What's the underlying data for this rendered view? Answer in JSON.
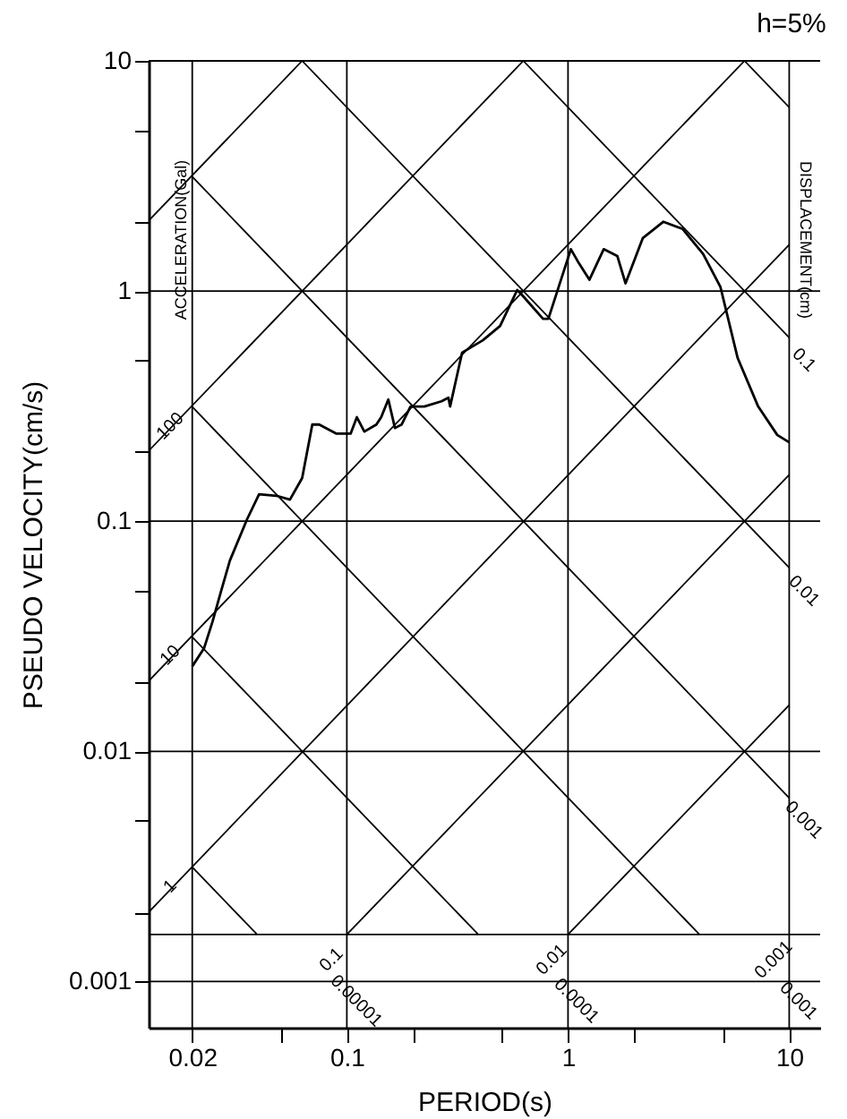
{
  "chart_data": {
    "type": "line",
    "title": "h=5%",
    "xlabel": "PERIOD(s)",
    "ylabel": "PSEUDO VELOCITY(cm/s)",
    "log": "xy",
    "grid": true,
    "xlim": [
      0.0127,
      13.8
    ],
    "ylim": [
      0.00063,
      10
    ],
    "xticks": [
      0.02,
      {
        "value": 0.05,
        "label": null
      },
      0.1,
      {
        "value": 0.2,
        "label": null
      },
      {
        "value": 0.5,
        "label": null
      },
      1,
      {
        "value": 2,
        "label": null
      },
      {
        "value": 5,
        "label": null
      },
      10
    ],
    "yticks": [
      0.001,
      {
        "value": 0.002,
        "label": null
      },
      {
        "value": 0.005,
        "label": null
      },
      0.01,
      {
        "value": 0.02,
        "label": null
      },
      {
        "value": 0.05,
        "label": null
      },
      0.1,
      {
        "value": 0.2,
        "label": null
      },
      {
        "value": 0.5,
        "label": null
      },
      1,
      {
        "value": 2,
        "label": null
      },
      {
        "value": 5,
        "label": null
      },
      10
    ],
    "series": [
      {
        "color": "#000000",
        "x": [
          0.02,
          0.0226,
          0.0247,
          0.027,
          0.0296,
          0.0354,
          0.0401,
          0.048,
          0.0553,
          0.0628,
          0.0698,
          0.075,
          0.0898,
          0.104,
          0.111,
          0.12,
          0.136,
          0.143,
          0.154,
          0.165,
          0.177,
          0.194,
          0.224,
          0.268,
          0.288,
          0.293,
          0.332,
          0.412,
          0.493,
          0.589,
          0.622,
          0.771,
          0.815,
          1.03,
          1.12,
          1.25,
          1.45,
          1.67,
          1.82,
          2.18,
          2.7,
          3.3,
          4.08,
          4.89,
          5.85,
          7.24,
          8.83,
          10
        ],
        "values": [
          0.0234,
          0.028,
          0.0366,
          0.0497,
          0.0675,
          0.102,
          0.131,
          0.129,
          0.124,
          0.154,
          0.263,
          0.263,
          0.24,
          0.24,
          0.283,
          0.245,
          0.263,
          0.283,
          0.338,
          0.254,
          0.263,
          0.315,
          0.315,
          0.332,
          0.344,
          0.315,
          0.54,
          0.611,
          0.705,
          1.01,
          0.957,
          0.757,
          0.757,
          1.52,
          1.32,
          1.12,
          1.52,
          1.42,
          1.08,
          1.7,
          2.0,
          1.86,
          1.45,
          1.04,
          0.511,
          0.315,
          0.237,
          0.22
        ]
      },
      {
        "color": "#000000",
        "x": [
          0.0127,
          0.0628
        ],
        "values": [
          2.02,
          10
        ]
      },
      {
        "color": "#000000",
        "x": [
          0.0127,
          0.628
        ],
        "values": [
          0.202,
          10
        ]
      },
      {
        "color": "#000000",
        "x": [
          0.0127,
          6.28
        ],
        "values": [
          0.0202,
          10
        ]
      },
      {
        "color": "#000000",
        "x": [
          0.0127,
          10
        ],
        "values": [
          0.002,
          1.59
        ]
      },
      {
        "color": "#000000",
        "x": [
          0.1,
          10
        ],
        "values": [
          0.0016,
          0.159
        ]
      },
      {
        "color": "#000000",
        "x": [
          1,
          10
        ],
        "values": [
          0.0016,
          0.0159
        ]
      },
      {
        "color": "#000000",
        "x": [
          6.28,
          10
        ],
        "values": [
          10,
          6.28
        ]
      },
      {
        "color": "#000000",
        "x": [
          0.628,
          10
        ],
        "values": [
          10,
          0.628
        ]
      },
      {
        "color": "#000000",
        "x": [
          0.0628,
          10
        ],
        "values": [
          10,
          0.0628
        ]
      },
      {
        "color": "#000000",
        "x": [
          0.02,
          10
        ],
        "values": [
          3.14,
          0.00628
        ]
      },
      {
        "color": "#000000",
        "x": [
          0.02,
          3.93
        ],
        "values": [
          0.314,
          0.0016
        ]
      },
      {
        "color": "#000000",
        "x": [
          0.02,
          0.393
        ],
        "values": [
          0.0314,
          0.0016
        ]
      },
      {
        "color": "#000000",
        "x": [
          0.02,
          0.0393
        ],
        "values": [
          0.00314,
          0.0016
        ]
      }
    ],
    "ref_lines": [
      {
        "axis": "y",
        "value": 0.0016,
        "color": "#000000"
      }
    ],
    "annotations": [
      "ACCELERATION(Gal)",
      "DISPLACEMENT(cm)",
      "100",
      "10",
      "1",
      "0.1",
      "0.01",
      "0.001",
      "0.00001",
      "0.0001",
      "0.001",
      "0.1",
      "0.01",
      "0.001"
    ]
  }
}
